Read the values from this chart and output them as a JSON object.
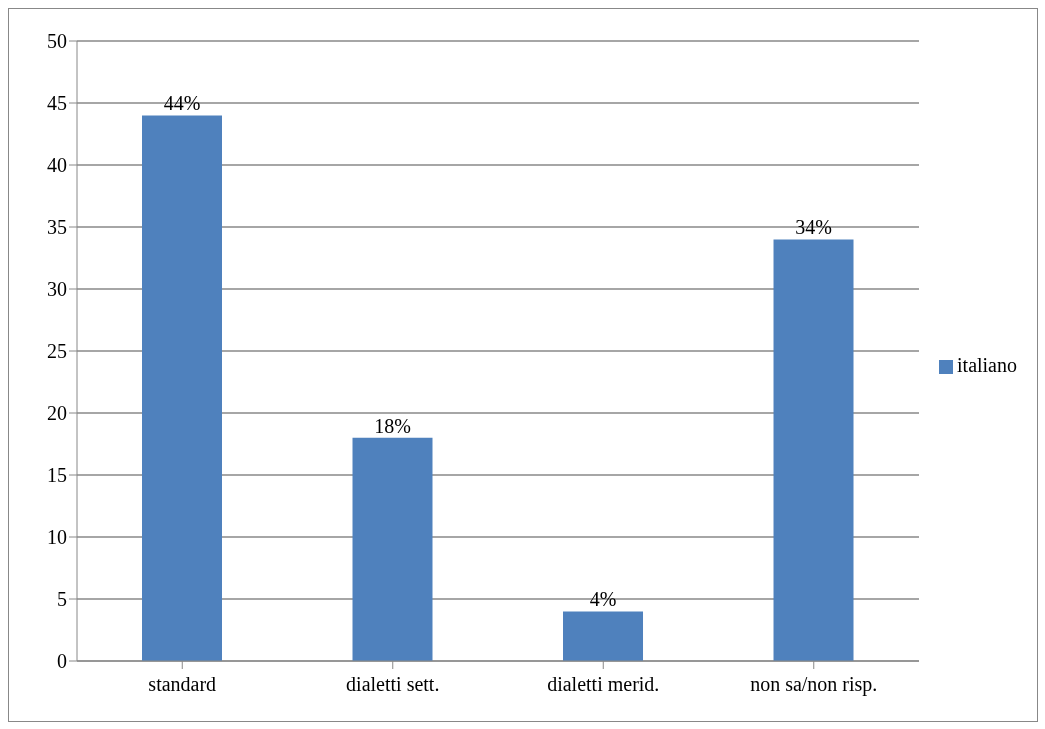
{
  "chart_data": {
    "type": "bar",
    "categories": [
      "standard",
      "dialetti sett.",
      "dialetti merid.",
      "non sa/non risp."
    ],
    "series": [
      {
        "name": "italiano",
        "color": "#4f81bd",
        "values": [
          44,
          18,
          4,
          34
        ],
        "value_labels": [
          "44%",
          "18%",
          "4%",
          "34%"
        ]
      }
    ],
    "ylim": [
      0,
      50
    ],
    "yticks": [
      0,
      5,
      10,
      15,
      20,
      25,
      30,
      35,
      40,
      45,
      50
    ],
    "grid": "y",
    "legend": "right"
  }
}
